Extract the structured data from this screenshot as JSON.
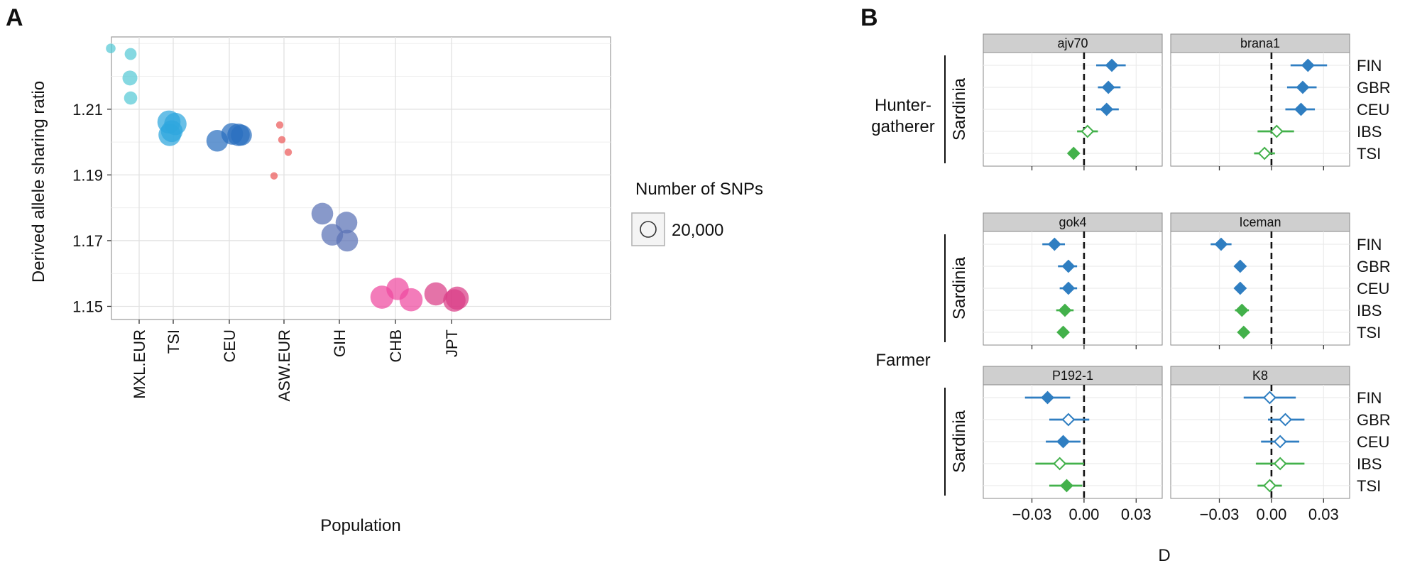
{
  "panel_a": {
    "label": "A",
    "legend": {
      "title": "Number of SNPs",
      "entry": "20,000"
    }
  },
  "panel_b": {
    "label": "B",
    "xlabel": "D",
    "rows": [
      "FIN",
      "GBR",
      "CEU",
      "IBS",
      "TSI"
    ],
    "group_labels": {
      "hunter": "Hunter-\ngatherer",
      "farmer": "Farmer"
    },
    "strip_label": "Sardinia"
  },
  "colors": {
    "MXL.EUR": "#56c9d6",
    "TSI": "#2ea6de",
    "CEU": "#2a6fbf",
    "ASW.EUR": "#ec5a5a",
    "GIH": "#5a71b5",
    "CHB": "#ee4aa0",
    "JPT": "#d93d87",
    "blue": "#2f7ec1",
    "green": "#43b14b",
    "grid": "#e4e4e4",
    "strip_bg": "#cfcfcf"
  },
  "chart_data": [
    {
      "type": "scatter",
      "panel": "A",
      "xlabel": "Population",
      "ylabel": "Derived allele sharing ratio",
      "categories": [
        "MXL.EUR",
        "TSI",
        "CEU",
        "ASW.EUR",
        "GIH",
        "CHB",
        "JPT"
      ],
      "ylim": [
        1.146,
        1.232
      ],
      "yticks": [
        "1.15",
        "1.17",
        "1.19",
        "1.21"
      ],
      "grid": true,
      "legend_position": "right",
      "size_legend": {
        "title": "Number of SNPs",
        "value": "20,000"
      },
      "points": [
        {
          "category": "MXL.EUR",
          "y": 1.2285,
          "snps": 6000
        },
        {
          "category": "MXL.EUR",
          "y": 1.2268,
          "snps": 9000
        },
        {
          "category": "MXL.EUR",
          "y": 1.2195,
          "snps": 14000
        },
        {
          "category": "MXL.EUR",
          "y": 1.2134,
          "snps": 11000
        },
        {
          "category": "TSI",
          "y": 1.2061,
          "snps": 34000
        },
        {
          "category": "TSI",
          "y": 1.2055,
          "snps": 32000
        },
        {
          "category": "TSI",
          "y": 1.2033,
          "snps": 30000
        },
        {
          "category": "TSI",
          "y": 1.2022,
          "snps": 32000
        },
        {
          "category": "CEU",
          "y": 1.2004,
          "snps": 30000
        },
        {
          "category": "CEU",
          "y": 1.2025,
          "snps": 30000
        },
        {
          "category": "CEU",
          "y": 1.2022,
          "snps": 32000
        },
        {
          "category": "CEU",
          "y": 1.2021,
          "snps": 28000
        },
        {
          "category": "ASW.EUR",
          "y": 1.2052,
          "snps": 3500
        },
        {
          "category": "ASW.EUR",
          "y": 1.2007,
          "snps": 3500
        },
        {
          "category": "ASW.EUR",
          "y": 1.1969,
          "snps": 3500
        },
        {
          "category": "ASW.EUR",
          "y": 1.1897,
          "snps": 3500
        },
        {
          "category": "GIH",
          "y": 1.1782,
          "snps": 30000
        },
        {
          "category": "GIH",
          "y": 1.1755,
          "snps": 30000
        },
        {
          "category": "GIH",
          "y": 1.1718,
          "snps": 30000
        },
        {
          "category": "GIH",
          "y": 1.17,
          "snps": 30000
        },
        {
          "category": "CHB",
          "y": 1.1553,
          "snps": 32000
        },
        {
          "category": "CHB",
          "y": 1.1528,
          "snps": 34000
        },
        {
          "category": "CHB",
          "y": 1.152,
          "snps": 34000
        },
        {
          "category": "JPT",
          "y": 1.1538,
          "snps": 34000
        },
        {
          "category": "JPT",
          "y": 1.1525,
          "snps": 34000
        },
        {
          "category": "JPT",
          "y": 1.1518,
          "snps": 32000
        }
      ]
    },
    {
      "type": "scatter",
      "panel": "B",
      "xlabel": "D",
      "xlim": [
        -0.058,
        0.045
      ],
      "xticks": [
        "−0.03",
        "0.00",
        "0.03"
      ],
      "reference_line": 0,
      "grid": true,
      "facets": [
        {
          "title": "ajv70",
          "group": "Hunter-gatherer",
          "points": [
            {
              "pop": "FIN",
              "D": 0.016,
              "lo": 0.007,
              "hi": 0.024,
              "filled": true,
              "color": "blue"
            },
            {
              "pop": "GBR",
              "D": 0.014,
              "lo": 0.008,
              "hi": 0.021,
              "filled": true,
              "color": "blue"
            },
            {
              "pop": "CEU",
              "D": 0.013,
              "lo": 0.007,
              "hi": 0.02,
              "filled": true,
              "color": "blue"
            },
            {
              "pop": "IBS",
              "D": 0.002,
              "lo": -0.004,
              "hi": 0.008,
              "filled": false,
              "color": "green"
            },
            {
              "pop": "TSI",
              "D": -0.006,
              "lo": -0.006,
              "hi": -0.006,
              "filled": true,
              "color": "green"
            }
          ]
        },
        {
          "title": "brana1",
          "group": "Hunter-gatherer",
          "points": [
            {
              "pop": "FIN",
              "D": 0.021,
              "lo": 0.011,
              "hi": 0.032,
              "filled": true,
              "color": "blue"
            },
            {
              "pop": "GBR",
              "D": 0.018,
              "lo": 0.009,
              "hi": 0.026,
              "filled": true,
              "color": "blue"
            },
            {
              "pop": "CEU",
              "D": 0.017,
              "lo": 0.008,
              "hi": 0.025,
              "filled": true,
              "color": "blue"
            },
            {
              "pop": "IBS",
              "D": 0.003,
              "lo": -0.008,
              "hi": 0.013,
              "filled": false,
              "color": "green"
            },
            {
              "pop": "TSI",
              "D": -0.004,
              "lo": -0.01,
              "hi": 0.002,
              "filled": false,
              "color": "green"
            }
          ]
        },
        {
          "title": "gok4",
          "group": "Farmer",
          "points": [
            {
              "pop": "FIN",
              "D": -0.017,
              "lo": -0.024,
              "hi": -0.011,
              "filled": true,
              "color": "blue"
            },
            {
              "pop": "GBR",
              "D": -0.009,
              "lo": -0.015,
              "hi": -0.004,
              "filled": true,
              "color": "blue"
            },
            {
              "pop": "CEU",
              "D": -0.009,
              "lo": -0.014,
              "hi": -0.004,
              "filled": true,
              "color": "blue"
            },
            {
              "pop": "IBS",
              "D": -0.011,
              "lo": -0.016,
              "hi": -0.006,
              "filled": true,
              "color": "green"
            },
            {
              "pop": "TSI",
              "D": -0.012,
              "lo": -0.012,
              "hi": -0.012,
              "filled": true,
              "color": "green"
            }
          ]
        },
        {
          "title": "Iceman",
          "group": "Farmer",
          "points": [
            {
              "pop": "FIN",
              "D": -0.029,
              "lo": -0.035,
              "hi": -0.023,
              "filled": true,
              "color": "blue"
            },
            {
              "pop": "GBR",
              "D": -0.018,
              "lo": -0.018,
              "hi": -0.018,
              "filled": true,
              "color": "blue"
            },
            {
              "pop": "CEU",
              "D": -0.018,
              "lo": -0.018,
              "hi": -0.018,
              "filled": true,
              "color": "blue"
            },
            {
              "pop": "IBS",
              "D": -0.017,
              "lo": -0.021,
              "hi": -0.013,
              "filled": true,
              "color": "green"
            },
            {
              "pop": "TSI",
              "D": -0.016,
              "lo": -0.016,
              "hi": -0.016,
              "filled": true,
              "color": "green"
            }
          ]
        },
        {
          "title": "P192-1",
          "group": "Farmer",
          "points": [
            {
              "pop": "FIN",
              "D": -0.021,
              "lo": -0.034,
              "hi": -0.008,
              "filled": true,
              "color": "blue"
            },
            {
              "pop": "GBR",
              "D": -0.009,
              "lo": -0.02,
              "hi": 0.003,
              "filled": false,
              "color": "blue"
            },
            {
              "pop": "CEU",
              "D": -0.012,
              "lo": -0.022,
              "hi": -0.002,
              "filled": true,
              "color": "blue"
            },
            {
              "pop": "IBS",
              "D": -0.014,
              "lo": -0.028,
              "hi": 0.0,
              "filled": false,
              "color": "green"
            },
            {
              "pop": "TSI",
              "D": -0.01,
              "lo": -0.02,
              "hi": -0.001,
              "filled": true,
              "color": "green"
            }
          ]
        },
        {
          "title": "K8",
          "group": "Farmer",
          "points": [
            {
              "pop": "FIN",
              "D": -0.001,
              "lo": -0.016,
              "hi": 0.014,
              "filled": false,
              "color": "blue"
            },
            {
              "pop": "GBR",
              "D": 0.008,
              "lo": -0.002,
              "hi": 0.019,
              "filled": false,
              "color": "blue"
            },
            {
              "pop": "CEU",
              "D": 0.005,
              "lo": -0.006,
              "hi": 0.016,
              "filled": false,
              "color": "blue"
            },
            {
              "pop": "IBS",
              "D": 0.005,
              "lo": -0.009,
              "hi": 0.019,
              "filled": false,
              "color": "green"
            },
            {
              "pop": "TSI",
              "D": -0.001,
              "lo": -0.008,
              "hi": 0.006,
              "filled": false,
              "color": "green"
            }
          ]
        }
      ]
    }
  ]
}
